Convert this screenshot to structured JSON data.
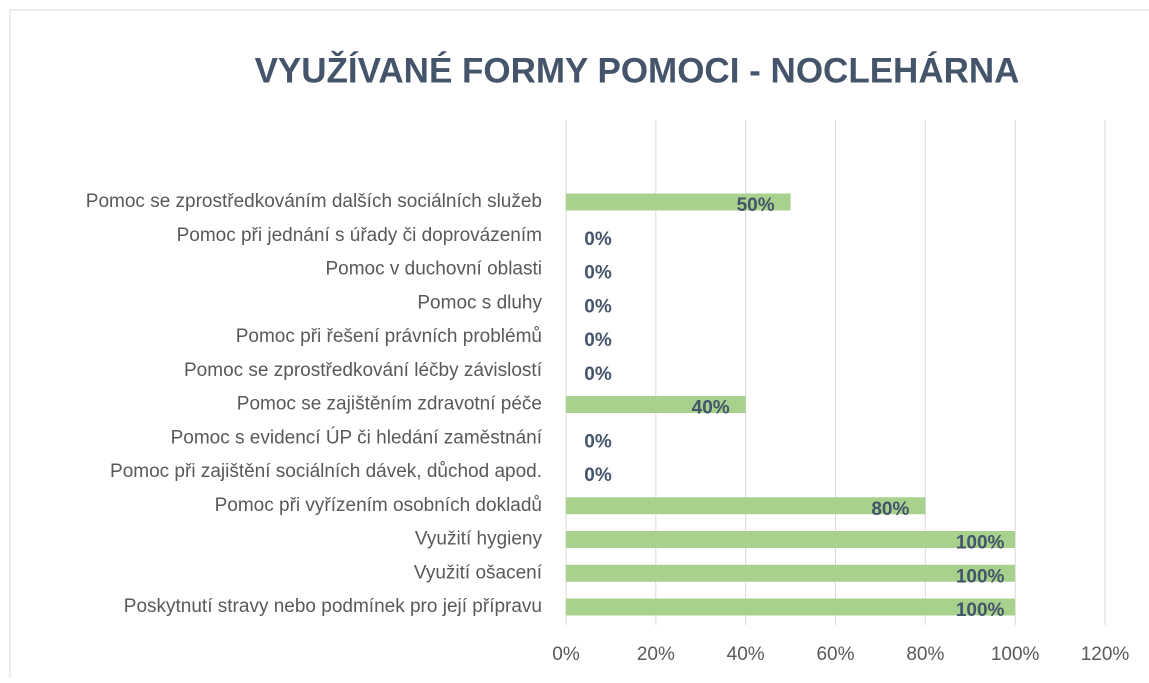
{
  "chart_data": {
    "type": "bar",
    "orientation": "horizontal",
    "title": "VYUŽÍVANÉ FORMY POMOCI - NOCLEHÁRNA",
    "categories": [
      "Pomoc se zprostředkováním dalších sociálních služeb",
      "Pomoc  při jednání s úřady či doprovázením",
      "Pomoc v duchovní oblasti",
      "Pomoc  s dluhy",
      "Pomoc  při řešení právních problémů",
      "Pomoc se zprostředkování léčby závislostí",
      "Pomoc  se zajištěním zdravotní péče",
      "Pomoc s evidencí ÚP či hledání zaměstnání",
      "Pomoc při zajištění sociálních dávek, důchod apod.",
      "Pomoc při vyřízením osobních dokladů",
      "Využití hygieny",
      "Využití ošacení",
      "Poskytnutí stravy nebo podmínek pro její přípravu"
    ],
    "values": [
      50,
      0,
      0,
      0,
      0,
      0,
      40,
      0,
      0,
      80,
      100,
      100,
      100
    ],
    "value_labels": [
      "50%",
      "0%",
      "0%",
      "0%",
      "0%",
      "0%",
      "40%",
      "0%",
      "0%",
      "80%",
      "100%",
      "100%",
      "100%"
    ],
    "color": "#a9d18e",
    "xlim": [
      0,
      120
    ],
    "xticks": [
      {
        "value": 0,
        "label": "0%"
      },
      {
        "value": 20,
        "label": "20%"
      },
      {
        "value": 40,
        "label": "40%"
      },
      {
        "value": 60,
        "label": "60%"
      },
      {
        "value": 80,
        "label": "80%"
      },
      {
        "value": 100,
        "label": "100%"
      },
      {
        "value": 120,
        "label": "120%"
      }
    ],
    "grid": true
  }
}
